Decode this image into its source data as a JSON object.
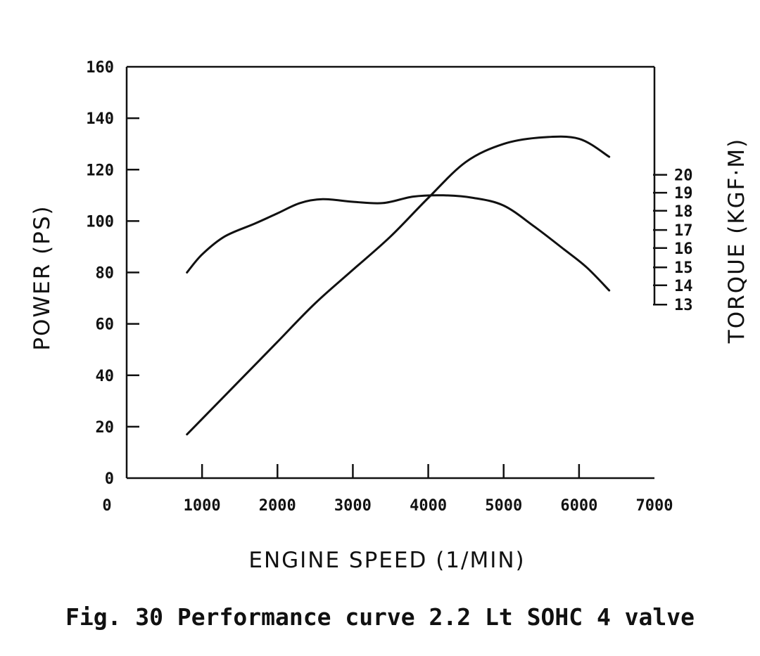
{
  "chart_data": {
    "type": "line",
    "title": "Fig. 30   Performance curve 2.2 Lt SOHC 4 valve",
    "xlabel": "ENGINE SPEED (1/MIN)",
    "ylabel": "POWER (PS)",
    "y2label": "TORQUE (KGF·M)",
    "xlim": [
      0,
      7000
    ],
    "ylim": [
      0,
      160
    ],
    "y2_ticks_at_power_scale": [
      [
        20,
        118
      ],
      [
        19,
        111
      ],
      [
        18,
        104
      ],
      [
        17,
        96.5
      ],
      [
        16,
        89.5
      ],
      [
        15,
        82
      ],
      [
        14,
        75
      ],
      [
        13,
        67.5
      ]
    ],
    "x_tick_labels": [
      "0",
      "1000",
      "2000",
      "3000",
      "4000",
      "5000",
      "6000",
      "7000"
    ],
    "y_tick_labels": [
      "0",
      "20",
      "40",
      "60",
      "80",
      "100",
      "120",
      "140",
      "160"
    ],
    "y2_tick_labels": [
      "20",
      "19",
      "18",
      "17",
      "16",
      "15",
      "14",
      "13"
    ],
    "grid": false,
    "series": [
      {
        "axis": "left",
        "x": [
          800,
          1000,
          1500,
          2000,
          2500,
          3000,
          3500,
          4000,
          4500,
          5000,
          5500,
          6000,
          6400
        ],
        "values": [
          17,
          23,
          38,
          53,
          68,
          81,
          94,
          109,
          123,
          130,
          132.5,
          132,
          125
        ]
      },
      {
        "axis": "right",
        "x": [
          800,
          1000,
          1300,
          1700,
          2000,
          2300,
          2600,
          3000,
          3400,
          3800,
          4200,
          4600,
          5000,
          5400,
          5800,
          6100,
          6400
        ],
        "values_at_power_scale": [
          80,
          87,
          94,
          99,
          103,
          107,
          108.5,
          107.5,
          107,
          109.5,
          110,
          109,
          106,
          98,
          89,
          82,
          73
        ]
      }
    ]
  }
}
